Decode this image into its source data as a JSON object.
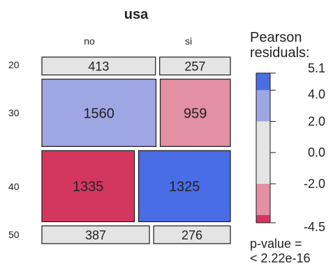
{
  "chart_data": {
    "type": "mosaic",
    "title": "usa",
    "column_labels": [
      "no",
      "si"
    ],
    "row_labels": [
      "20",
      "30",
      "40",
      "50"
    ],
    "cells": [
      {
        "row": "20",
        "col": "no",
        "count": 413,
        "color": "#e4e4e4"
      },
      {
        "row": "20",
        "col": "si",
        "count": 257,
        "color": "#e4e4e4"
      },
      {
        "row": "30",
        "col": "no",
        "count": 1560,
        "color": "#9ea6e3"
      },
      {
        "row": "30",
        "col": "si",
        "count": 959,
        "color": "#e290a2"
      },
      {
        "row": "40",
        "col": "no",
        "count": 1335,
        "color": "#d4375e"
      },
      {
        "row": "40",
        "col": "si",
        "count": 1325,
        "color": "#4a6ce5"
      },
      {
        "row": "50",
        "col": "no",
        "count": 387,
        "color": "#e4e4e4"
      },
      {
        "row": "50",
        "col": "si",
        "count": 276,
        "color": "#e4e4e4"
      }
    ],
    "legend": {
      "title_line1": "Pearson",
      "title_line2": "residuals:",
      "range": [
        -4.5,
        5.1
      ],
      "ticks": [
        "5.1",
        "4.0",
        "2.0",
        "0.0",
        "-2.0",
        "-4.5"
      ],
      "tick_values": [
        5.1,
        4.0,
        2.0,
        0.0,
        -2.0,
        -4.5
      ],
      "bands": [
        {
          "from": 4.0,
          "to": 5.1,
          "color": "#4a6ce5"
        },
        {
          "from": 2.0,
          "to": 4.0,
          "color": "#9ea6e3"
        },
        {
          "from": -2.0,
          "to": 2.0,
          "color": "#e4e4e4"
        },
        {
          "from": -4.0,
          "to": -2.0,
          "color": "#e290a2"
        },
        {
          "from": -4.5,
          "to": -4.0,
          "color": "#d4375e"
        }
      ]
    },
    "p_value_line1": "p-value =",
    "p_value_line2": "< 2.22e-16"
  }
}
